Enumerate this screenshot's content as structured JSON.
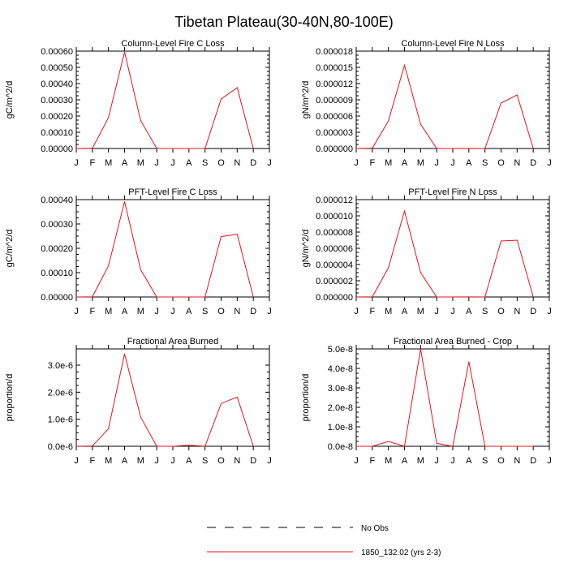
{
  "main_title": "Tibetan Plateau(30-40N,80-100E)",
  "legend": [
    {
      "label": "No Obs",
      "style": "dashed",
      "color": "#000000"
    },
    {
      "label": "1850_132.02 (yrs 2-3)",
      "style": "solid",
      "color": "#e8141c"
    }
  ],
  "chart_data": [
    {
      "type": "line",
      "title": "Column-Level Fire C Loss",
      "ylabel": "gC/m^2/d",
      "x_tick_labels": [
        "J",
        "F",
        "M",
        "A",
        "M",
        "J",
        "J",
        "A",
        "S",
        "O",
        "N",
        "D",
        "J"
      ],
      "ylim": [
        0,
        0.0006
      ],
      "y_ticks": [
        0,
        0.0001,
        0.0002,
        0.0003,
        0.0004,
        0.0005,
        0.0006
      ],
      "y_tick_labels": [
        "0.00000",
        "0.00010",
        "0.00020",
        "0.00030",
        "0.00040",
        "0.00050",
        "0.00060"
      ],
      "series": [
        {
          "name": "1850_132.02 (yrs 2-3)",
          "color": "#e8141c",
          "values": [
            0,
            1.5e-06,
            0.00019,
            0.000595,
            0.000172,
            0,
            0,
            0,
            0,
            0.000305,
            0.000375,
            0
          ]
        }
      ]
    },
    {
      "type": "line",
      "title": "Column-Level Fire N Loss",
      "ylabel": "gN/m^2/d",
      "x_tick_labels": [
        "J",
        "F",
        "M",
        "A",
        "M",
        "J",
        "J",
        "A",
        "S",
        "O",
        "N",
        "D",
        "J"
      ],
      "ylim": [
        0,
        1.8e-05
      ],
      "y_ticks": [
        0,
        3e-06,
        6e-06,
        9e-06,
        1.2e-05,
        1.5e-05,
        1.8e-05
      ],
      "y_tick_labels": [
        "0.000000",
        "0.000003",
        "0.000006",
        "0.000009",
        "0.000012",
        "0.000015",
        "0.000018"
      ],
      "series": [
        {
          "name": "1850_132.02 (yrs 2-3)",
          "color": "#e8141c",
          "values": [
            0,
            5e-08,
            5.1e-06,
            1.54e-05,
            4.5e-06,
            0,
            0,
            2e-08,
            0,
            8.4e-06,
            9.9e-06,
            0
          ]
        }
      ]
    },
    {
      "type": "line",
      "title": "PFT-Level Fire C Loss",
      "ylabel": "gC/m^2/d",
      "x_tick_labels": [
        "J",
        "F",
        "M",
        "A",
        "M",
        "J",
        "J",
        "A",
        "S",
        "O",
        "N",
        "D",
        "J"
      ],
      "ylim": [
        0,
        0.0004
      ],
      "y_ticks": [
        0,
        0.0001,
        0.0002,
        0.0003,
        0.0004
      ],
      "y_tick_labels": [
        "0.00000",
        "0.00010",
        "0.00020",
        "0.00030",
        "0.00040"
      ],
      "series": [
        {
          "name": "1850_132.02 (yrs 2-3)",
          "color": "#e8141c",
          "values": [
            0,
            1e-06,
            0.000128,
            0.000392,
            0.000112,
            0,
            0,
            0,
            0,
            0.000248,
            0.000258,
            0
          ]
        }
      ]
    },
    {
      "type": "line",
      "title": "PFT-Level Fire N Loss",
      "ylabel": "gN/m^2/d",
      "x_tick_labels": [
        "J",
        "F",
        "M",
        "A",
        "M",
        "J",
        "J",
        "A",
        "S",
        "O",
        "N",
        "D",
        "J"
      ],
      "ylim": [
        0,
        1.2e-05
      ],
      "y_ticks": [
        0,
        2e-06,
        4e-06,
        6e-06,
        8e-06,
        1e-05,
        1.2e-05
      ],
      "y_tick_labels": [
        "0.000000",
        "0.000002",
        "0.000004",
        "0.000006",
        "0.000008",
        "0.000010",
        "0.000012"
      ],
      "series": [
        {
          "name": "1850_132.02 (yrs 2-3)",
          "color": "#e8141c",
          "values": [
            0,
            3e-08,
            3.6e-06,
            1.06e-05,
            3e-06,
            0,
            0,
            1e-08,
            0,
            6.9e-06,
            7e-06,
            0
          ]
        }
      ]
    },
    {
      "type": "line",
      "title": "Fractional Area Burned",
      "ylabel": "proportion/d",
      "x_tick_labels": [
        "J",
        "F",
        "M",
        "A",
        "M",
        "J",
        "J",
        "A",
        "S",
        "O",
        "N",
        "D",
        "J"
      ],
      "ylim": [
        0,
        3.6e-06
      ],
      "y_ticks": [
        0,
        1e-06,
        2e-06,
        3e-06
      ],
      "y_tick_labels": [
        "0.0e-6",
        "1.0e-6",
        "2.0e-6",
        "3.0e-6"
      ],
      "series": [
        {
          "name": "1850_132.02 (yrs 2-3)",
          "color": "#e8141c",
          "values": [
            0,
            1e-08,
            6.5e-07,
            3.42e-06,
            1.08e-06,
            0,
            0,
            4e-08,
            0,
            1.58e-06,
            1.82e-06,
            0
          ]
        }
      ]
    },
    {
      "type": "line",
      "title": "Fractional Area Burned - Crop",
      "ylabel": "proportion/d",
      "x_tick_labels": [
        "J",
        "F",
        "M",
        "A",
        "M",
        "J",
        "J",
        "A",
        "S",
        "O",
        "N",
        "D",
        "J"
      ],
      "ylim": [
        0,
        5e-08
      ],
      "y_ticks": [
        0,
        1e-08,
        2e-08,
        3e-08,
        4e-08,
        5e-08
      ],
      "y_tick_labels": [
        "0.0e-8",
        "1.0e-8",
        "2.0e-8",
        "3.0e-8",
        "4.0e-8",
        "5.0e-8"
      ],
      "series": [
        {
          "name": "1850_132.02 (yrs 2-3)",
          "color": "#e8141c",
          "values": [
            0,
            0,
            2.5e-09,
            0,
            5e-08,
            1.5e-09,
            0,
            4.35e-08,
            0,
            0,
            0,
            0
          ]
        }
      ]
    }
  ]
}
